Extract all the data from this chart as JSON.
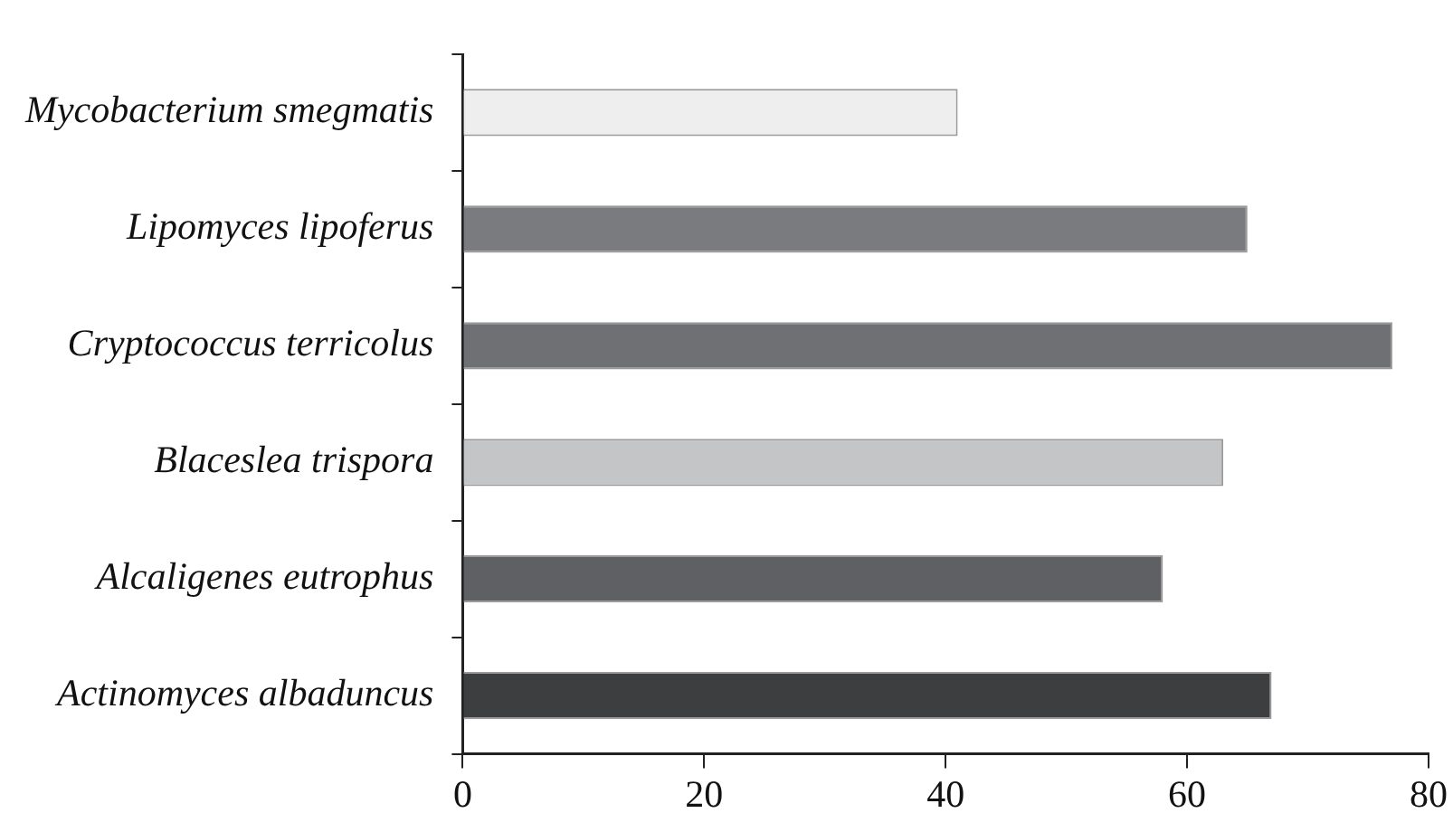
{
  "chart_data": {
    "type": "bar",
    "orientation": "horizontal",
    "categories": [
      "Mycobacterium smegmatis",
      "Lipomyces lipoferus",
      "Cryptococcus terricolus",
      "Blaceslea trispora",
      "Alcaligenes eutrophus",
      "Actinomyces albaduncus"
    ],
    "values": [
      41,
      65,
      77,
      63,
      58,
      67
    ],
    "colors": [
      "#eeeeee",
      "#7a7b7e",
      "#6f7073",
      "#c4c5c7",
      "#5f6063",
      "#3d3e40"
    ],
    "xlim": [
      0,
      80
    ],
    "xticks": [
      0,
      20,
      40,
      60,
      80
    ],
    "grid": false,
    "legend": false
  }
}
